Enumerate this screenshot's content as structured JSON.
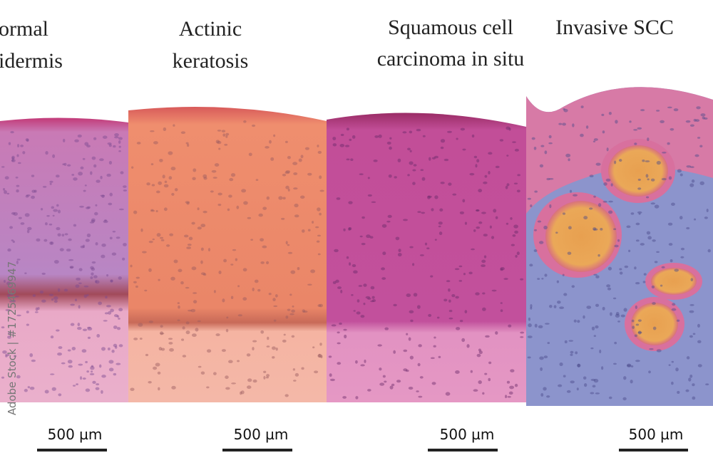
{
  "panels": [
    {
      "title_lines": [
        "ormal",
        "idermis"
      ],
      "scale_label": "500 µm"
    },
    {
      "title_lines": [
        "Actinic",
        "keratosis"
      ],
      "scale_label": "500 µm"
    },
    {
      "title_lines": [
        "Squamous cell",
        "carcinoma in situ"
      ],
      "scale_label": "500 µm"
    },
    {
      "title_lines": [
        "Invasive SCC"
      ],
      "scale_label": "500 µm"
    }
  ],
  "watermark": "Adobe Stock | #1725469947"
}
